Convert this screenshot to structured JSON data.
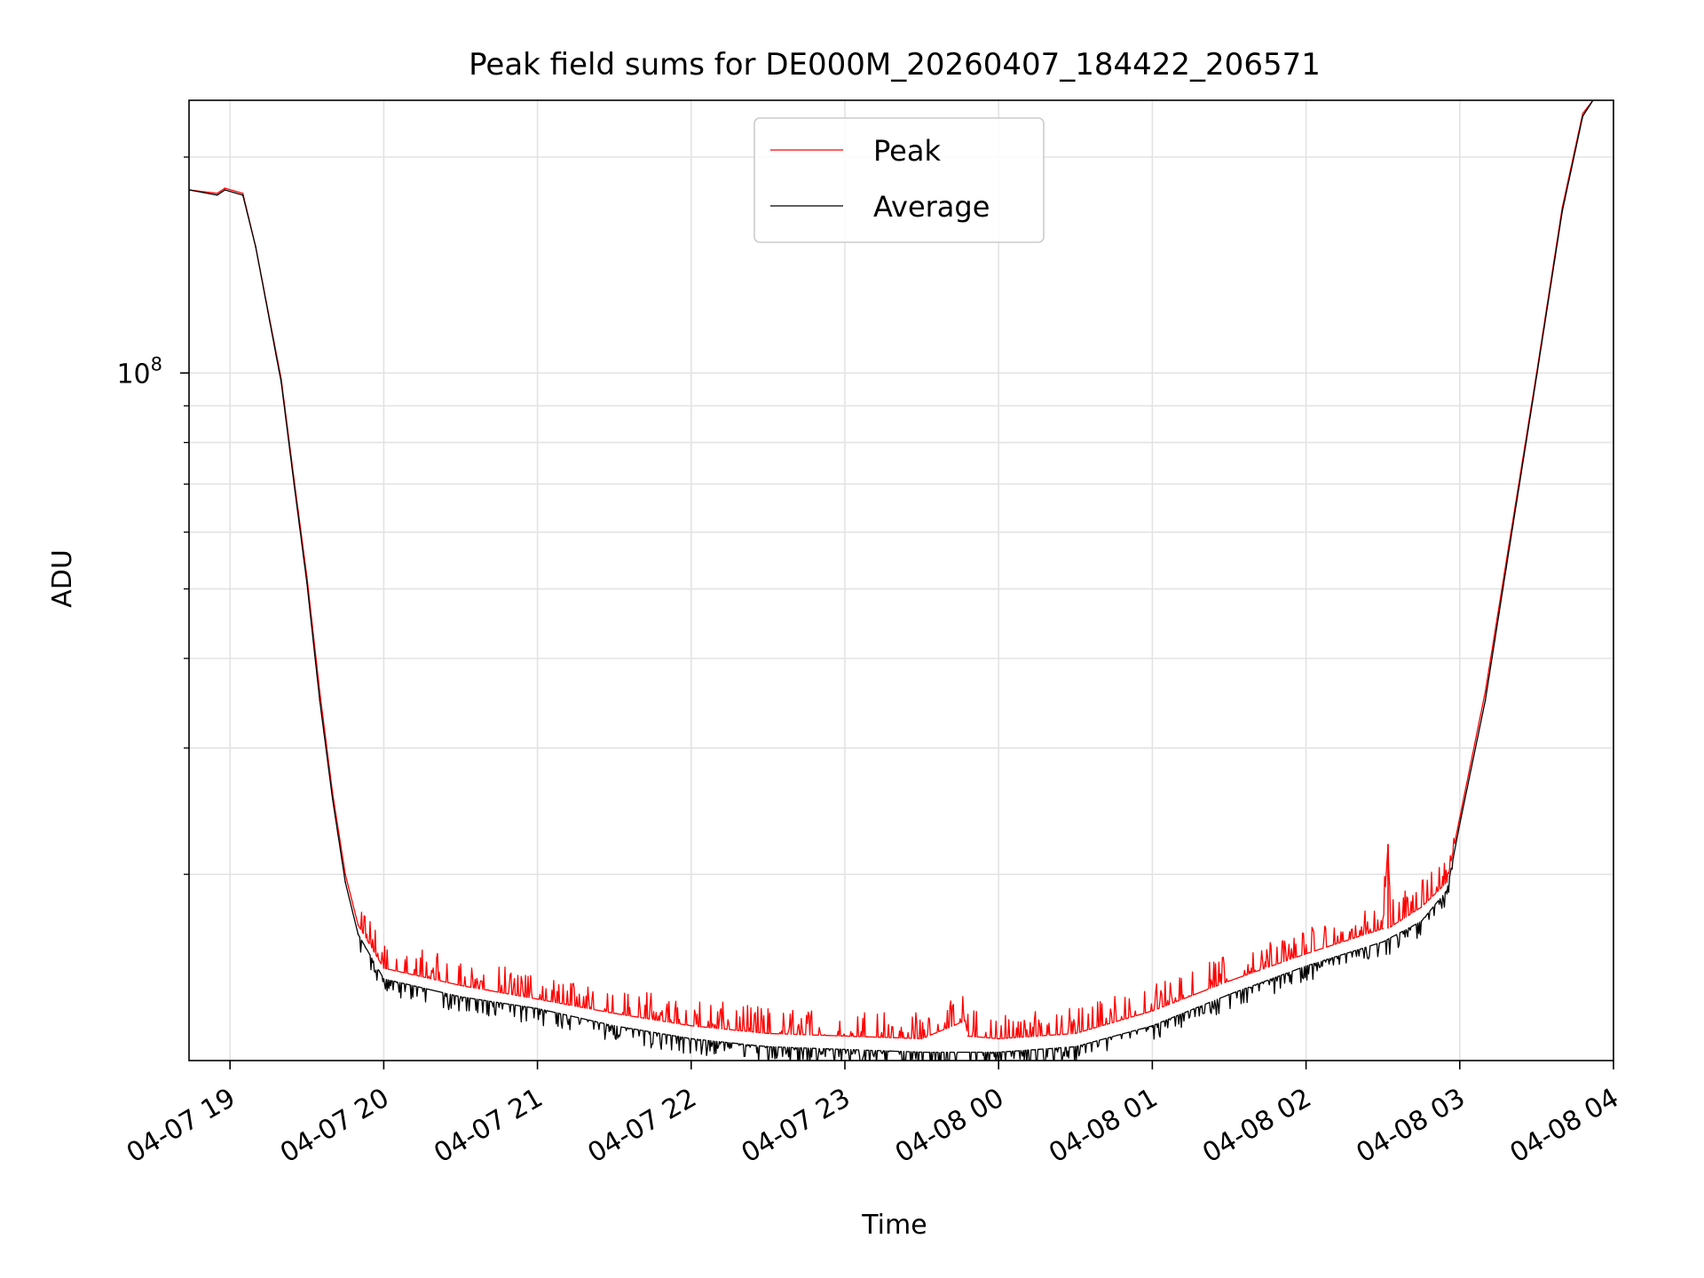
{
  "chart_data": {
    "type": "line",
    "title": "Peak field sums for DE000M_20260407_184422_206571",
    "xlabel": "Time",
    "ylabel": "ADU",
    "y_scale": "log",
    "y_tick_label": "10^8",
    "y_tick_label_base": "10",
    "y_tick_label_exp": "8",
    "xlim": [
      "2026-04-07 18:44",
      "2026-04-08 04:00"
    ],
    "ylim": [
      11000000,
      240000000
    ],
    "x_tick_labels": [
      "04-07 19",
      "04-07 20",
      "04-07 21",
      "04-07 22",
      "04-07 23",
      "04-08 00",
      "04-08 01",
      "04-08 02",
      "04-08 03",
      "04-08 04"
    ],
    "grid": true,
    "legend_position": "upper center",
    "series": [
      {
        "name": "Peak",
        "color": "#ff0000",
        "x": [
          "2026-04-07 18:44",
          "2026-04-07 18:55",
          "2026-04-07 18:58",
          "2026-04-07 19:05",
          "2026-04-07 19:10",
          "2026-04-07 19:20",
          "2026-04-07 19:25",
          "2026-04-07 19:30",
          "2026-04-07 19:35",
          "2026-04-07 19:40",
          "2026-04-07 19:45",
          "2026-04-07 19:50",
          "2026-04-07 20:00",
          "2026-04-07 20:30",
          "2026-04-07 21:00",
          "2026-04-07 21:30",
          "2026-04-07 22:00",
          "2026-04-07 22:30",
          "2026-04-07 23:00",
          "2026-04-07 23:30",
          "2026-04-07 23:47",
          "2026-04-07 23:48",
          "2026-04-08 00:00",
          "2026-04-08 00:30",
          "2026-04-08 01:00",
          "2026-04-08 01:30",
          "2026-04-08 02:00",
          "2026-04-08 02:30",
          "2026-04-08 02:32",
          "2026-04-08 02:33",
          "2026-04-08 02:45",
          "2026-04-08 02:55",
          "2026-04-08 03:00",
          "2026-04-08 03:10",
          "2026-04-08 03:20",
          "2026-04-08 03:30",
          "2026-04-08 03:40",
          "2026-04-08 03:48",
          "2026-04-08 03:52"
        ],
        "y": [
          180000000,
          178000000,
          181000000,
          178000000,
          150000000,
          98000000,
          71000000,
          52000000,
          36000000,
          26000000,
          20000000,
          17000000,
          14800000,
          14000000,
          13400000,
          12800000,
          12300000,
          12000000,
          11900000,
          11800000,
          12500000,
          11900000,
          11800000,
          12000000,
          12900000,
          14200000,
          15500000,
          16800000,
          22000000,
          16900000,
          18000000,
          19500000,
          24000000,
          36000000,
          60000000,
          100000000,
          170000000,
          230000000,
          240000000
        ]
      },
      {
        "name": "Average",
        "color": "#000000",
        "x": [
          "2026-04-07 18:44",
          "2026-04-07 18:55",
          "2026-04-07 18:58",
          "2026-04-07 19:05",
          "2026-04-07 19:10",
          "2026-04-07 19:20",
          "2026-04-07 19:25",
          "2026-04-07 19:30",
          "2026-04-07 19:35",
          "2026-04-07 19:40",
          "2026-04-07 19:45",
          "2026-04-07 19:50",
          "2026-04-07 20:00",
          "2026-04-07 20:30",
          "2026-04-07 21:00",
          "2026-04-07 21:30",
          "2026-04-07 22:00",
          "2026-04-07 22:30",
          "2026-04-07 23:00",
          "2026-04-07 23:30",
          "2026-04-08 00:00",
          "2026-04-08 00:30",
          "2026-04-08 01:00",
          "2026-04-08 01:30",
          "2026-04-08 02:00",
          "2026-04-08 02:30",
          "2026-04-08 02:45",
          "2026-04-08 02:55",
          "2026-04-08 03:00",
          "2026-04-08 03:10",
          "2026-04-08 03:20",
          "2026-04-08 03:30",
          "2026-04-08 03:40",
          "2026-04-08 03:48",
          "2026-04-08 03:52"
        ],
        "y": [
          180000000,
          177000000,
          180000000,
          177000000,
          150000000,
          97000000,
          70000000,
          51000000,
          35000000,
          25500000,
          19500000,
          16500000,
          14300000,
          13500000,
          13000000,
          12300000,
          11800000,
          11500000,
          11400000,
          11300000,
          11300000,
          11500000,
          12300000,
          13600000,
          14900000,
          16100000,
          17200000,
          19000000,
          23500000,
          35000000,
          59000000,
          99000000,
          168000000,
          228000000,
          240000000
        ]
      }
    ]
  }
}
